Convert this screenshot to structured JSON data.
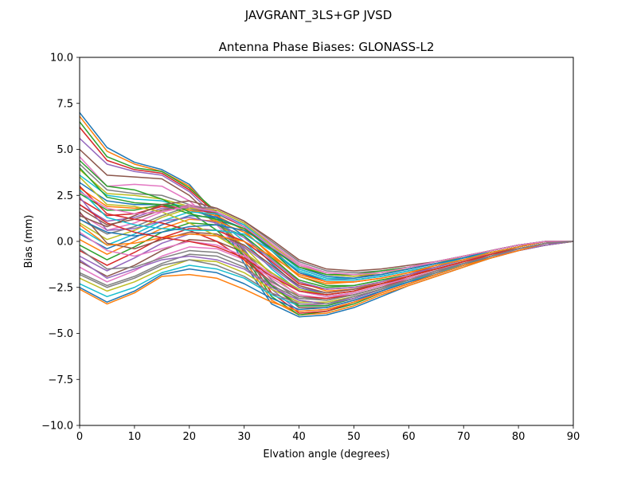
{
  "figure": {
    "suptitle": "JAVGRANT_3LS+GP JVSD"
  },
  "chart_data": {
    "type": "line",
    "title": "Antenna Phase Biases: GLONASS-L2",
    "xlabel": "Elvation angle (degrees)",
    "ylabel": "Bias (mm)",
    "xlim": [
      0,
      90
    ],
    "ylim": [
      -10,
      10
    ],
    "xticks": [
      0,
      10,
      20,
      30,
      40,
      50,
      60,
      70,
      80,
      90
    ],
    "xtick_labels": [
      "0",
      "10",
      "20",
      "30",
      "40",
      "50",
      "60",
      "70",
      "80",
      "90"
    ],
    "yticks": [
      -10,
      -7.5,
      -5,
      -2.5,
      0,
      2.5,
      5,
      7.5,
      10
    ],
    "ytick_labels": [
      "−10.0",
      "−7.5",
      "−5.0",
      "−2.5",
      "0.0",
      "2.5",
      "5.0",
      "7.5",
      "10.0"
    ],
    "grid": false,
    "legend": "none",
    "palette": [
      "#1f77b4",
      "#ff7f0e",
      "#2ca02c",
      "#d62728",
      "#9467bd",
      "#8c564b",
      "#e377c2",
      "#7f7f7f",
      "#bcbd22",
      "#17becf"
    ],
    "x": [
      0,
      5,
      10,
      15,
      20,
      25,
      30,
      35,
      40,
      45,
      50,
      55,
      60,
      65,
      70,
      75,
      80,
      85,
      90
    ],
    "series": [
      {
        "values": [
          7.0,
          5.1,
          4.3,
          3.9,
          3.1,
          1.4,
          -1.2,
          -3.4,
          -4.1,
          -4.0,
          -3.6,
          -3.0,
          -2.4,
          -1.9,
          -1.4,
          -0.9,
          -0.5,
          -0.2,
          0.0
        ]
      },
      {
        "values": [
          6.8,
          4.9,
          4.2,
          3.8,
          3.0,
          1.5,
          -1.0,
          -3.2,
          -4.0,
          -3.9,
          -3.5,
          -2.9,
          -2.4,
          -1.9,
          -1.4,
          -0.9,
          -0.5,
          -0.2,
          0.0
        ]
      },
      {
        "values": [
          6.5,
          4.6,
          4.0,
          3.8,
          2.9,
          1.6,
          -0.8,
          -3.0,
          -4.0,
          -3.8,
          -3.4,
          -2.8,
          -2.3,
          -1.8,
          -1.3,
          -0.9,
          -0.5,
          -0.2,
          0.0
        ]
      },
      {
        "values": [
          6.2,
          4.4,
          3.9,
          3.7,
          2.8,
          1.5,
          -0.6,
          -2.8,
          -3.9,
          -3.8,
          -3.3,
          -2.8,
          -2.3,
          -1.8,
          -1.3,
          -0.9,
          -0.5,
          -0.2,
          0.0
        ]
      },
      {
        "values": [
          5.6,
          4.2,
          3.8,
          3.6,
          2.7,
          1.3,
          -0.4,
          -2.6,
          -3.8,
          -3.7,
          -3.3,
          -2.7,
          -2.2,
          -1.8,
          -1.3,
          -0.8,
          -0.5,
          -0.2,
          0.0
        ]
      },
      {
        "values": [
          5.0,
          3.6,
          3.5,
          3.4,
          2.5,
          1.1,
          -0.5,
          -2.4,
          -3.6,
          -3.6,
          -3.2,
          -2.7,
          -2.2,
          -1.7,
          -1.3,
          -0.8,
          -0.4,
          -0.1,
          0.0
        ]
      },
      {
        "values": [
          4.6,
          3.0,
          3.1,
          3.0,
          2.2,
          0.9,
          -0.7,
          -2.3,
          -3.4,
          -3.5,
          -3.1,
          -2.6,
          -2.1,
          -1.7,
          -1.2,
          -0.8,
          -0.4,
          -0.1,
          0.0
        ]
      },
      {
        "values": [
          4.2,
          2.8,
          2.6,
          2.5,
          2.0,
          1.0,
          -0.5,
          -2.1,
          -3.2,
          -3.4,
          -3.0,
          -2.6,
          -2.1,
          -1.7,
          -1.2,
          -0.8,
          -0.4,
          -0.1,
          0.0
        ]
      },
      {
        "values": [
          3.9,
          2.6,
          2.5,
          2.3,
          1.9,
          1.1,
          -0.3,
          -1.8,
          -3.0,
          -3.2,
          -2.9,
          -2.5,
          -2.0,
          -1.6,
          -1.2,
          -0.8,
          -0.4,
          -0.1,
          0.0
        ]
      },
      {
        "values": [
          3.6,
          2.5,
          2.3,
          2.2,
          1.8,
          1.2,
          0.0,
          -1.5,
          -2.7,
          -3.0,
          -2.8,
          -2.4,
          -2.0,
          -1.6,
          -1.1,
          -0.7,
          -0.4,
          -0.1,
          0.0
        ]
      },
      {
        "values": [
          3.2,
          2.2,
          2.0,
          2.0,
          1.7,
          1.3,
          0.3,
          -1.2,
          -2.5,
          -2.9,
          -2.7,
          -2.3,
          -1.9,
          -1.5,
          -1.1,
          -0.7,
          -0.4,
          -0.1,
          0.0
        ]
      },
      {
        "values": [
          2.9,
          1.9,
          1.8,
          1.9,
          1.7,
          1.4,
          0.6,
          -0.8,
          -2.2,
          -2.7,
          -2.6,
          -2.2,
          -1.9,
          -1.5,
          -1.1,
          -0.7,
          -0.4,
          -0.1,
          0.0
        ]
      },
      {
        "values": [
          2.6,
          1.7,
          1.7,
          2.0,
          1.9,
          1.5,
          0.8,
          -0.5,
          -1.9,
          -2.4,
          -2.4,
          -2.1,
          -1.8,
          -1.4,
          -1.0,
          -0.6,
          -0.3,
          0.0,
          0.0
        ]
      },
      {
        "values": [
          2.3,
          1.4,
          1.5,
          1.9,
          1.8,
          1.5,
          0.8,
          -0.4,
          -1.7,
          -2.2,
          -2.2,
          -2.0,
          -1.7,
          -1.4,
          -1.0,
          -0.6,
          -0.3,
          0.0,
          0.0
        ]
      },
      {
        "values": [
          2.0,
          1.1,
          1.3,
          1.8,
          1.8,
          1.6,
          0.9,
          -0.3,
          -1.5,
          -2.0,
          -2.1,
          -1.9,
          -1.6,
          -1.3,
          -0.9,
          -0.6,
          -0.3,
          0.0,
          0.0
        ]
      },
      {
        "values": [
          1.8,
          0.9,
          1.2,
          1.7,
          1.9,
          1.7,
          1.0,
          -0.2,
          -1.3,
          -1.8,
          -1.9,
          -1.8,
          -1.5,
          -1.2,
          -0.9,
          -0.5,
          -0.2,
          0.0,
          0.0
        ]
      },
      {
        "values": [
          1.5,
          0.6,
          1.0,
          1.6,
          2.0,
          1.7,
          1.0,
          -0.1,
          -1.2,
          -1.7,
          -1.8,
          -1.7,
          -1.4,
          -1.2,
          -0.8,
          -0.5,
          -0.2,
          0.0,
          0.0
        ]
      },
      {
        "values": [
          1.2,
          0.4,
          0.8,
          1.4,
          1.9,
          1.8,
          1.1,
          0.0,
          -1.1,
          -1.6,
          -1.7,
          -1.6,
          -1.4,
          -1.1,
          -0.8,
          -0.5,
          -0.2,
          0.0,
          0.0
        ]
      },
      {
        "values": [
          1.0,
          0.1,
          0.6,
          1.3,
          1.8,
          1.7,
          1.0,
          -0.2,
          -1.3,
          -1.8,
          -1.9,
          -1.7,
          -1.5,
          -1.2,
          -0.8,
          -0.5,
          -0.2,
          0.0,
          0.0
        ]
      },
      {
        "values": [
          0.7,
          -0.2,
          0.4,
          1.1,
          1.6,
          1.5,
          0.9,
          -0.3,
          -1.5,
          -2.0,
          -2.0,
          -1.8,
          -1.5,
          -1.2,
          -0.9,
          -0.5,
          -0.2,
          0.0,
          0.0
        ]
      },
      {
        "values": [
          0.4,
          -0.4,
          0.2,
          0.9,
          1.4,
          1.3,
          0.7,
          -0.5,
          -1.7,
          -2.1,
          -2.1,
          -1.9,
          -1.6,
          -1.3,
          -0.9,
          -0.6,
          -0.3,
          0.0,
          0.0
        ]
      },
      {
        "values": [
          0.1,
          -0.7,
          0.0,
          0.7,
          1.2,
          1.1,
          0.5,
          -0.7,
          -1.9,
          -2.3,
          -2.2,
          -2.0,
          -1.7,
          -1.3,
          -1.0,
          -0.6,
          -0.3,
          0.0,
          0.0
        ]
      },
      {
        "values": [
          -0.2,
          -1.0,
          -0.3,
          0.5,
          1.0,
          0.9,
          0.3,
          -0.9,
          -2.1,
          -2.5,
          -2.4,
          -2.1,
          -1.8,
          -1.4,
          -1.0,
          -0.6,
          -0.3,
          0.0,
          0.0
        ]
      },
      {
        "values": [
          -0.5,
          -1.3,
          -0.6,
          0.2,
          0.7,
          0.6,
          0.0,
          -1.1,
          -2.3,
          -2.6,
          -2.5,
          -2.2,
          -1.8,
          -1.5,
          -1.1,
          -0.7,
          -0.3,
          0.0,
          0.0
        ]
      },
      {
        "values": [
          -0.8,
          -1.6,
          -0.9,
          -0.1,
          0.4,
          0.3,
          -0.3,
          -1.4,
          -2.5,
          -2.8,
          -2.6,
          -2.3,
          -1.9,
          -1.5,
          -1.1,
          -0.7,
          -0.4,
          -0.1,
          0.0
        ]
      },
      {
        "values": [
          -1.1,
          -1.9,
          -1.3,
          -0.5,
          0.1,
          0.0,
          -0.6,
          -1.7,
          -2.7,
          -2.9,
          -2.7,
          -2.3,
          -2.0,
          -1.6,
          -1.1,
          -0.7,
          -0.4,
          -0.1,
          0.0
        ]
      },
      {
        "values": [
          -1.4,
          -2.2,
          -1.6,
          -0.8,
          -0.3,
          -0.4,
          -1.0,
          -2.0,
          -2.9,
          -3.1,
          -2.8,
          -2.4,
          -2.0,
          -1.6,
          -1.2,
          -0.8,
          -0.4,
          -0.1,
          0.0
        ]
      },
      {
        "values": [
          -1.7,
          -2.4,
          -1.9,
          -1.2,
          -0.7,
          -0.8,
          -1.4,
          -2.4,
          -3.1,
          -3.2,
          -2.9,
          -2.5,
          -2.1,
          -1.7,
          -1.2,
          -0.8,
          -0.4,
          -0.1,
          0.0
        ]
      },
      {
        "values": [
          -2.0,
          -2.7,
          -2.2,
          -1.5,
          -1.0,
          -1.1,
          -1.7,
          -2.6,
          -3.3,
          -3.3,
          -3.0,
          -2.6,
          -2.1,
          -1.7,
          -1.2,
          -0.8,
          -0.4,
          -0.1,
          0.0
        ]
      },
      {
        "values": [
          -2.3,
          -3.0,
          -2.5,
          -1.7,
          -1.3,
          -1.5,
          -2.0,
          -2.9,
          -3.5,
          -3.5,
          -3.1,
          -2.6,
          -2.2,
          -1.7,
          -1.3,
          -0.8,
          -0.4,
          -0.1,
          0.0
        ]
      },
      {
        "values": [
          -2.5,
          -3.3,
          -2.7,
          -1.8,
          -1.5,
          -1.7,
          -2.3,
          -3.1,
          -3.7,
          -3.6,
          -3.2,
          -2.7,
          -2.2,
          -1.8,
          -1.3,
          -0.8,
          -0.4,
          -0.1,
          0.0
        ]
      },
      {
        "values": [
          -2.6,
          -3.4,
          -2.8,
          -1.9,
          -1.8,
          -2.0,
          -2.6,
          -3.3,
          -3.8,
          -3.7,
          -3.3,
          -2.8,
          -2.3,
          -1.8,
          -1.3,
          -0.9,
          -0.5,
          -0.1,
          0.0
        ]
      },
      {
        "values": [
          4.4,
          3.0,
          2.8,
          2.3,
          1.6,
          0.6,
          -0.8,
          -2.4,
          -3.5,
          -3.5,
          -3.1,
          -2.6,
          -2.1,
          -1.7,
          -1.2,
          -0.8,
          -0.4,
          -0.1,
          0.0
        ]
      },
      {
        "values": [
          3.0,
          1.5,
          1.2,
          1.0,
          0.6,
          0.0,
          -1.0,
          -2.2,
          -3.0,
          -3.1,
          -2.9,
          -2.5,
          -2.0,
          -1.6,
          -1.2,
          -0.7,
          -0.4,
          -0.1,
          0.0
        ]
      },
      {
        "values": [
          2.4,
          0.6,
          0.7,
          1.1,
          1.3,
          1.0,
          0.2,
          -1.0,
          -2.2,
          -2.6,
          -2.5,
          -2.2,
          -1.8,
          -1.4,
          -1.0,
          -0.7,
          -0.3,
          0.0,
          0.0
        ]
      },
      {
        "values": [
          1.6,
          -0.1,
          -0.4,
          0.1,
          0.5,
          0.4,
          -0.2,
          -1.3,
          -2.4,
          -2.8,
          -2.6,
          -2.3,
          -1.9,
          -1.5,
          -1.1,
          -0.7,
          -0.3,
          0.0,
          0.0
        ]
      },
      {
        "values": [
          0.5,
          -0.5,
          -0.8,
          -0.4,
          0.0,
          -0.2,
          -0.8,
          -1.8,
          -2.7,
          -3.0,
          -2.8,
          -2.4,
          -2.0,
          -1.6,
          -1.1,
          -0.7,
          -0.4,
          -0.1,
          0.0
        ]
      },
      {
        "values": [
          -0.4,
          -1.5,
          -1.4,
          -0.9,
          -0.5,
          -0.6,
          -1.2,
          -2.2,
          -3.0,
          -3.2,
          -2.9,
          -2.5,
          -2.1,
          -1.6,
          -1.2,
          -0.8,
          -0.4,
          -0.1,
          0.0
        ]
      },
      {
        "values": [
          3.5,
          2.0,
          1.9,
          1.6,
          1.0,
          0.3,
          -0.6,
          -1.7,
          -2.6,
          -2.9,
          -2.7,
          -2.3,
          -1.9,
          -1.5,
          -1.1,
          -0.7,
          -0.4,
          -0.1,
          0.0
        ]
      },
      {
        "values": [
          2.8,
          1.3,
          0.9,
          0.7,
          0.6,
          0.6,
          0.4,
          -0.5,
          -1.6,
          -2.1,
          -2.1,
          -1.9,
          -1.6,
          -1.3,
          -0.9,
          -0.6,
          -0.3,
          0.0,
          0.0
        ]
      },
      {
        "values": [
          1.2,
          0.5,
          0.3,
          0.5,
          0.8,
          0.9,
          0.6,
          -0.3,
          -1.4,
          -1.9,
          -2.0,
          -1.8,
          -1.5,
          -1.2,
          -0.9,
          -0.5,
          -0.2,
          0.0,
          0.0
        ]
      },
      {
        "values": [
          0.9,
          -0.2,
          -0.1,
          0.2,
          0.4,
          0.3,
          0.0,
          -0.8,
          -1.8,
          -2.2,
          -2.2,
          -2.0,
          -1.7,
          -1.3,
          -1.0,
          -0.6,
          -0.3,
          0.0,
          0.0
        ]
      },
      {
        "values": [
          4.0,
          2.4,
          2.1,
          2.0,
          1.5,
          1.2,
          0.7,
          -0.4,
          -1.4,
          -1.8,
          -1.8,
          -1.6,
          -1.4,
          -1.1,
          -0.8,
          -0.5,
          -0.2,
          0.0,
          0.0
        ]
      },
      {
        "values": [
          2.0,
          1.0,
          0.5,
          0.2,
          0.0,
          -0.3,
          -0.9,
          -1.9,
          -2.7,
          -2.9,
          -2.7,
          -2.3,
          -1.9,
          -1.5,
          -1.1,
          -0.7,
          -0.4,
          -0.1,
          0.0
        ]
      },
      {
        "values": [
          -1.0,
          -2.0,
          -1.5,
          -1.0,
          -0.8,
          -1.0,
          -1.5,
          -2.5,
          -3.2,
          -3.4,
          -3.1,
          -2.6,
          -2.1,
          -1.7,
          -1.2,
          -0.8,
          -0.4,
          -0.1,
          0.0
        ]
      },
      {
        "values": [
          1.4,
          0.8,
          1.4,
          2.0,
          2.2,
          1.8,
          1.1,
          0.1,
          -1.0,
          -1.5,
          -1.6,
          -1.5,
          -1.3,
          -1.1,
          -0.8,
          -0.5,
          -0.2,
          0.0,
          0.0
        ]
      },
      {
        "values": [
          2.7,
          1.8,
          1.5,
          1.6,
          1.9,
          1.6,
          0.8,
          -0.3,
          -1.3,
          -1.7,
          -1.8,
          -1.7,
          -1.4,
          -1.1,
          -0.8,
          -0.5,
          -0.2,
          0.0,
          0.0
        ]
      },
      {
        "values": [
          -1.8,
          -2.5,
          -2.0,
          -1.3,
          -1.0,
          -1.3,
          -1.9,
          -2.8,
          -3.4,
          -3.4,
          -3.0,
          -2.6,
          -2.1,
          -1.7,
          -1.2,
          -0.8,
          -0.4,
          -0.1,
          0.0
        ]
      }
    ]
  }
}
